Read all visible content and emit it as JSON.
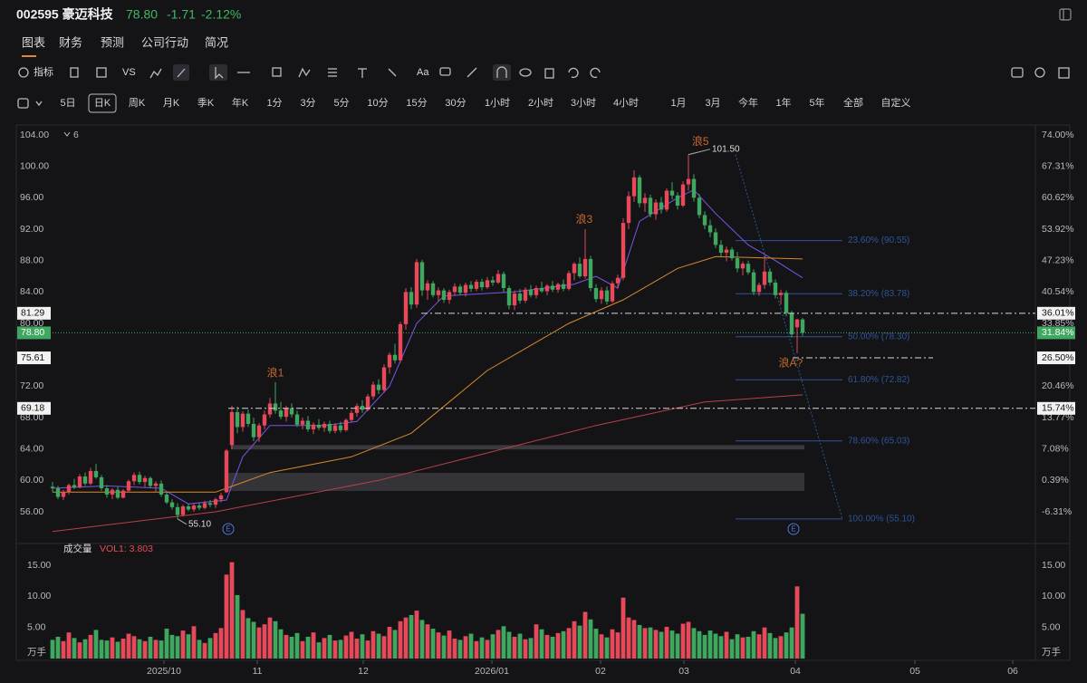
{
  "header": {
    "code_name": "002595 豪迈科技",
    "price": "78.80",
    "change": "-1.71",
    "change_pct": "-2.12%"
  },
  "tabs": [
    "图表",
    "财务",
    "预测",
    "公司行动",
    "简况"
  ],
  "toolbar": {
    "indicator": "指标",
    "compare": "VS",
    "text_tool": "Aa"
  },
  "intervals": [
    "5日",
    "日K",
    "周K",
    "月K",
    "季K",
    "年K",
    "1分",
    "3分",
    "5分",
    "10分",
    "15分",
    "30分",
    "1小时",
    "2小时",
    "3小时",
    "4小时",
    "1月",
    "3月",
    "今年",
    "1年",
    "5年",
    "全部",
    "自定义"
  ],
  "chart_data": {
    "type": "candlestick",
    "legend_count": "6",
    "up_color": "#e5495a",
    "down_color": "#3fa75f",
    "candles": [
      [
        59.2,
        59.8,
        58.5,
        59.0
      ],
      [
        59.0,
        59.3,
        57.6,
        57.9
      ],
      [
        57.9,
        58.8,
        57.5,
        58.5
      ],
      [
        58.5,
        59.6,
        58.2,
        59.4
      ],
      [
        59.4,
        60.2,
        58.9,
        59.1
      ],
      [
        59.1,
        60.8,
        59.0,
        60.5
      ],
      [
        60.5,
        61.0,
        59.3,
        59.6
      ],
      [
        59.6,
        61.6,
        59.4,
        61.2
      ],
      [
        61.2,
        62.1,
        60.2,
        60.4
      ],
      [
        60.4,
        60.7,
        58.7,
        59.0
      ],
      [
        59.0,
        59.4,
        57.8,
        58.2
      ],
      [
        58.2,
        59.0,
        57.6,
        58.8
      ],
      [
        58.8,
        59.2,
        57.6,
        57.8
      ],
      [
        57.8,
        58.9,
        57.7,
        58.7
      ],
      [
        58.7,
        60.1,
        58.5,
        59.9
      ],
      [
        59.9,
        61.0,
        59.4,
        60.7
      ],
      [
        60.7,
        61.1,
        59.5,
        59.8
      ],
      [
        59.8,
        60.6,
        59.2,
        60.3
      ],
      [
        60.3,
        60.5,
        59.0,
        59.3
      ],
      [
        59.3,
        59.9,
        58.5,
        59.6
      ],
      [
        59.6,
        60.0,
        57.9,
        58.2
      ],
      [
        58.2,
        58.5,
        57.0,
        57.2
      ],
      [
        57.2,
        57.6,
        56.3,
        56.6
      ],
      [
        56.6,
        57.1,
        55.1,
        55.6
      ],
      [
        55.6,
        56.9,
        55.4,
        56.7
      ],
      [
        56.7,
        57.0,
        56.1,
        56.3
      ],
      [
        56.3,
        57.0,
        56.0,
        56.8
      ],
      [
        56.8,
        57.2,
        56.2,
        56.5
      ],
      [
        56.5,
        57.4,
        56.3,
        57.1
      ],
      [
        57.1,
        57.5,
        56.6,
        56.9
      ],
      [
        56.9,
        57.8,
        56.5,
        57.6
      ],
      [
        57.6,
        58.4,
        57.2,
        58.1
      ],
      [
        58.5,
        64.0,
        58.4,
        63.8
      ],
      [
        64.5,
        69.5,
        64.0,
        68.7
      ],
      [
        68.7,
        69.4,
        66.0,
        66.8
      ],
      [
        66.8,
        68.8,
        66.2,
        68.5
      ],
      [
        68.5,
        69.0,
        66.8,
        67.2
      ],
      [
        67.2,
        68.0,
        65.0,
        65.5
      ],
      [
        65.5,
        67.3,
        64.9,
        67.0
      ],
      [
        67.0,
        68.9,
        66.5,
        68.4
      ],
      [
        68.4,
        70.5,
        68.0,
        69.8
      ],
      [
        69.8,
        72.5,
        68.5,
        68.9
      ],
      [
        68.9,
        70.0,
        67.8,
        68.1
      ],
      [
        68.1,
        69.5,
        67.5,
        69.2
      ],
      [
        69.2,
        69.8,
        68.0,
        68.4
      ],
      [
        68.4,
        68.9,
        66.8,
        67.1
      ],
      [
        67.1,
        68.0,
        66.5,
        67.6
      ],
      [
        67.6,
        68.2,
        66.2,
        66.5
      ],
      [
        66.5,
        67.4,
        65.9,
        67.1
      ],
      [
        67.1,
        67.8,
        66.4,
        66.7
      ],
      [
        66.7,
        67.5,
        66.2,
        67.2
      ],
      [
        67.2,
        67.6,
        66.0,
        66.3
      ],
      [
        66.3,
        67.3,
        66.0,
        67.0
      ],
      [
        67.0,
        67.5,
        66.1,
        66.4
      ],
      [
        66.4,
        67.9,
        66.2,
        67.7
      ],
      [
        67.7,
        68.9,
        67.4,
        68.6
      ],
      [
        68.6,
        69.8,
        68.1,
        69.5
      ],
      [
        69.5,
        70.2,
        68.6,
        69.0
      ],
      [
        69.0,
        71.0,
        68.8,
        70.7
      ],
      [
        70.7,
        72.6,
        70.3,
        72.2
      ],
      [
        72.2,
        72.9,
        71.0,
        71.5
      ],
      [
        71.5,
        74.8,
        71.2,
        74.4
      ],
      [
        74.4,
        76.3,
        73.6,
        76.0
      ],
      [
        76.0,
        77.4,
        74.9,
        75.3
      ],
      [
        75.3,
        80.2,
        75.0,
        79.9
      ],
      [
        79.9,
        84.5,
        79.2,
        84.0
      ],
      [
        84.0,
        84.6,
        81.8,
        82.4
      ],
      [
        82.4,
        88.2,
        82.0,
        87.8
      ],
      [
        87.8,
        88.1,
        83.5,
        84.2
      ],
      [
        84.2,
        85.5,
        83.0,
        85.1
      ],
      [
        85.1,
        85.4,
        83.3,
        83.6
      ],
      [
        83.6,
        84.6,
        82.8,
        84.2
      ],
      [
        84.2,
        84.5,
        82.6,
        83.0
      ],
      [
        83.0,
        84.3,
        82.5,
        84.0
      ],
      [
        84.0,
        85.1,
        83.5,
        84.7
      ],
      [
        84.7,
        85.0,
        83.6,
        83.9
      ],
      [
        83.9,
        85.2,
        83.4,
        84.9
      ],
      [
        84.9,
        85.4,
        84.0,
        84.4
      ],
      [
        84.4,
        85.6,
        84.1,
        85.3
      ],
      [
        85.3,
        85.7,
        84.2,
        84.6
      ],
      [
        84.6,
        85.9,
        84.4,
        85.5
      ],
      [
        85.5,
        86.0,
        84.8,
        85.2
      ],
      [
        85.2,
        86.8,
        85.0,
        86.3
      ],
      [
        86.3,
        86.6,
        84.0,
        84.5
      ],
      [
        84.5,
        84.8,
        81.8,
        82.3
      ],
      [
        82.3,
        84.2,
        81.7,
        83.8
      ],
      [
        83.8,
        84.4,
        82.5,
        82.9
      ],
      [
        82.9,
        84.6,
        82.6,
        84.3
      ],
      [
        84.3,
        84.9,
        83.3,
        83.6
      ],
      [
        83.6,
        84.8,
        83.2,
        84.5
      ],
      [
        84.5,
        85.3,
        83.9,
        84.1
      ],
      [
        84.1,
        85.0,
        83.6,
        84.8
      ],
      [
        84.8,
        85.4,
        84.0,
        84.3
      ],
      [
        84.3,
        85.2,
        83.9,
        85.0
      ],
      [
        85.0,
        85.6,
        84.1,
        84.4
      ],
      [
        84.4,
        86.7,
        84.2,
        86.4
      ],
      [
        86.4,
        87.8,
        85.5,
        87.6
      ],
      [
        87.6,
        88.4,
        85.8,
        86.0
      ],
      [
        86.0,
        92.0,
        85.7,
        88.2
      ],
      [
        88.2,
        88.6,
        84.1,
        84.5
      ],
      [
        84.5,
        85.0,
        82.7,
        83.1
      ],
      [
        83.1,
        84.6,
        82.5,
        84.2
      ],
      [
        84.2,
        84.7,
        82.4,
        82.8
      ],
      [
        82.8,
        85.4,
        82.6,
        85.1
      ],
      [
        85.1,
        86.2,
        84.4,
        85.8
      ],
      [
        85.8,
        93.4,
        85.5,
        92.8
      ],
      [
        92.8,
        96.8,
        92.0,
        96.2
      ],
      [
        96.2,
        99.5,
        95.5,
        98.6
      ],
      [
        98.6,
        98.9,
        94.8,
        95.3
      ],
      [
        95.3,
        96.6,
        94.2,
        96.0
      ],
      [
        96.0,
        96.4,
        93.5,
        93.9
      ],
      [
        93.9,
        95.8,
        93.2,
        95.4
      ],
      [
        95.4,
        96.1,
        94.0,
        94.5
      ],
      [
        94.5,
        97.2,
        94.2,
        96.9
      ],
      [
        96.9,
        98.0,
        95.8,
        96.3
      ],
      [
        96.3,
        96.7,
        94.5,
        95.0
      ],
      [
        95.0,
        98.1,
        94.8,
        97.7
      ],
      [
        97.7,
        101.5,
        96.9,
        98.4
      ],
      [
        98.4,
        99.0,
        95.5,
        96.0
      ],
      [
        96.0,
        96.5,
        93.4,
        93.8
      ],
      [
        93.8,
        94.3,
        92.0,
        92.5
      ],
      [
        92.5,
        93.2,
        91.0,
        91.6
      ],
      [
        91.6,
        92.1,
        89.6,
        90.0
      ],
      [
        90.0,
        90.6,
        88.4,
        89.0
      ],
      [
        89.0,
        89.8,
        87.9,
        89.4
      ],
      [
        89.4,
        89.7,
        88.0,
        88.3
      ],
      [
        88.3,
        89.1,
        86.5,
        87.0
      ],
      [
        87.0,
        87.9,
        86.1,
        87.6
      ],
      [
        87.6,
        88.0,
        86.2,
        86.5
      ],
      [
        86.5,
        86.9,
        83.6,
        84.0
      ],
      [
        84.0,
        85.2,
        83.5,
        84.9
      ],
      [
        84.9,
        88.6,
        84.4,
        86.6
      ],
      [
        86.6,
        87.0,
        84.8,
        85.2
      ],
      [
        85.2,
        85.6,
        83.2,
        83.6
      ],
      [
        83.6,
        84.3,
        82.4,
        83.9
      ],
      [
        83.9,
        84.2,
        80.9,
        81.3
      ],
      [
        81.3,
        81.6,
        78.2,
        78.6
      ],
      [
        79.5,
        80.6,
        76.2,
        80.5
      ],
      [
        80.5,
        80.7,
        78.4,
        78.8
      ]
    ],
    "xlim": [
      -1,
      180.83
    ],
    "xticks": [
      {
        "value": 20.5,
        "label": "2025/10"
      },
      {
        "value": 37.67,
        "label": "11"
      },
      {
        "value": 57.17,
        "label": "12"
      },
      {
        "value": 80.83,
        "label": "2026/01"
      },
      {
        "value": 100.83,
        "label": "02"
      },
      {
        "value": 116.17,
        "label": "03"
      },
      {
        "value": 136.67,
        "label": "04"
      },
      {
        "value": 158.67,
        "label": "05"
      },
      {
        "value": 176.67,
        "label": "06"
      }
    ],
    "ylim": [
      52.54,
      105.04
    ],
    "yticks": [
      {
        "value": 104,
        "label": "104.00"
      },
      {
        "value": 100,
        "label": "100.00"
      },
      {
        "value": 96,
        "label": "96.00"
      },
      {
        "value": 92,
        "label": "92.00"
      },
      {
        "value": 88,
        "label": "88.00"
      },
      {
        "value": 84,
        "label": "84.00"
      },
      {
        "value": 80,
        "label": "80.00"
      },
      {
        "value": 72,
        "label": "72.00"
      },
      {
        "value": 68,
        "label": "68.00"
      },
      {
        "value": 64,
        "label": "64.00"
      },
      {
        "value": 60,
        "label": "60.00"
      },
      {
        "value": 56,
        "label": "56.00"
      }
    ],
    "y2lim": [
      -12.1,
      75.74
    ],
    "y2ticks": [
      {
        "value": 74,
        "label": "74.00%"
      },
      {
        "value": 67.31,
        "label": "67.31%"
      },
      {
        "value": 60.62,
        "label": "60.62%"
      },
      {
        "value": 53.92,
        "label": "53.92%"
      },
      {
        "value": 47.23,
        "label": "47.23%"
      },
      {
        "value": 40.54,
        "label": "40.54%"
      },
      {
        "value": 33.85,
        "label": "33.85%"
      },
      {
        "value": 20.46,
        "label": "20.46%"
      },
      {
        "value": 13.77,
        "label": "13.77%"
      },
      {
        "value": 7.08,
        "label": "7.08%"
      },
      {
        "value": 0.39,
        "label": "0.39%"
      },
      {
        "value": -6.31,
        "label": "-6.31%"
      }
    ],
    "ma_lines": [
      {
        "color": "#7b55e6",
        "x": [
          0,
          10,
          20,
          25,
          32,
          35,
          40,
          50,
          56,
          62,
          67,
          72,
          85,
          96,
          100,
          104,
          108,
          115,
          118,
          122,
          128,
          133,
          138
        ],
        "values": [
          59,
          59.3,
          59,
          57,
          57.5,
          63,
          67,
          67,
          67.5,
          72,
          80,
          83.5,
          84,
          85,
          86,
          84.5,
          93,
          96,
          97,
          94,
          90,
          88,
          85.8
        ]
      },
      {
        "color": "#d9892b",
        "x": [
          0,
          30,
          40,
          55,
          66,
          80,
          95,
          105,
          115,
          122,
          138
        ],
        "values": [
          58.5,
          58.5,
          61,
          63,
          66,
          74,
          80,
          83,
          87,
          88.5,
          88.2
        ]
      },
      {
        "color": "#b8404a",
        "x": [
          0,
          30,
          60,
          80,
          100,
          120,
          138
        ],
        "values": [
          53.5,
          56,
          60,
          63.5,
          67,
          70,
          70.9
        ]
      }
    ],
    "zones": [
      {
        "color": "#3a3a3e",
        "values": [
          63.95,
          64.5
        ]
      },
      {
        "color": "#333338",
        "values": [
          58.65,
          60.96
        ]
      }
    ],
    "levels": {
      "values": [
        81.29,
        75.61,
        69.18
      ],
      "pct_values": [
        36.01,
        26.5,
        15.74
      ],
      "pct_labels": [
        "36.01%",
        "26.50%",
        "15.74%"
      ]
    },
    "last": {
      "value": 78.8,
      "label": "78.80",
      "pct": 31.84,
      "pct_label": "31.84%",
      "color": "#3fa75f"
    },
    "fib": {
      "color": "#2d5596",
      "levels": [
        {
          "value": 90.55,
          "label": "23.60% (90.55)"
        },
        {
          "value": 83.78,
          "label": "38.20% (83.78)"
        },
        {
          "value": 78.3,
          "label": "50.00% (78.30)"
        },
        {
          "value": 72.82,
          "label": "61.80% (72.82)"
        },
        {
          "value": 65.03,
          "label": "78.60% (65.03)"
        },
        {
          "value": 55.1,
          "label": "100.00% (55.10)"
        }
      ]
    },
    "annotations": [
      "浪1",
      "浪3",
      "浪5",
      "浪A?"
    ],
    "extremes": {
      "values": [
        101.5,
        55.1
      ],
      "value_labels": [
        "101.50",
        "55.10"
      ]
    },
    "events": [
      "E",
      "E"
    ],
    "volume": {
      "title": "成交量",
      "indicator": "VOL1: 3.803",
      "unit": "万手",
      "ylim": [
        0,
        17.77
      ],
      "yticks": [
        {
          "value": 15,
          "label": "15.00"
        },
        {
          "value": 10,
          "label": "10.00"
        },
        {
          "value": 5,
          "label": "5.00"
        }
      ],
      "values": [
        3.0,
        3.5,
        2.8,
        4.2,
        3.3,
        2.6,
        3.1,
        3.8,
        4.6,
        3.0,
        2.9,
        3.4,
        2.7,
        3.2,
        4.0,
        3.6,
        3.1,
        2.8,
        3.5,
        3.0,
        2.9,
        4.8,
        3.8,
        3.6,
        4.5,
        3.9,
        5.2,
        3.0,
        2.5,
        3.3,
        4.1,
        4.9,
        13.5,
        15.5,
        10.2,
        7.8,
        6.5,
        5.9,
        5.0,
        5.5,
        6.6,
        6.0,
        4.7,
        3.8,
        3.5,
        4.1,
        2.8,
        3.5,
        4.2,
        2.6,
        3.3,
        3.8,
        2.9,
        3.0,
        3.7,
        4.3,
        3.2,
        3.9,
        2.9,
        4.4,
        4.0,
        3.6,
        5.1,
        4.6,
        6.0,
        6.6,
        7.0,
        7.7,
        6.2,
        5.5,
        4.8,
        4.2,
        3.7,
        4.5,
        3.2,
        3.0,
        3.6,
        4.0,
        2.8,
        3.4,
        3.0,
        3.9,
        4.6,
        5.2,
        4.3,
        3.5,
        4.0,
        3.1,
        3.3,
        5.5,
        4.7,
        3.8,
        3.5,
        4.1,
        4.4,
        4.9,
        6.0,
        5.3,
        7.5,
        6.3,
        4.8,
        3.9,
        3.4,
        4.7,
        4.2,
        9.8,
        6.6,
        6.2,
        5.4,
        4.9,
        5.0,
        4.6,
        4.3,
        5.1,
        4.5,
        4.0,
        5.6,
        5.9,
        4.9,
        4.4,
        3.8,
        4.5,
        4.0,
        3.6,
        4.3,
        3.1,
        3.9,
        3.4,
        3.5,
        4.4,
        3.9,
        5.0,
        4.1,
        3.3,
        3.6,
        4.2,
        5.0,
        11.6,
        7.2
      ]
    }
  }
}
